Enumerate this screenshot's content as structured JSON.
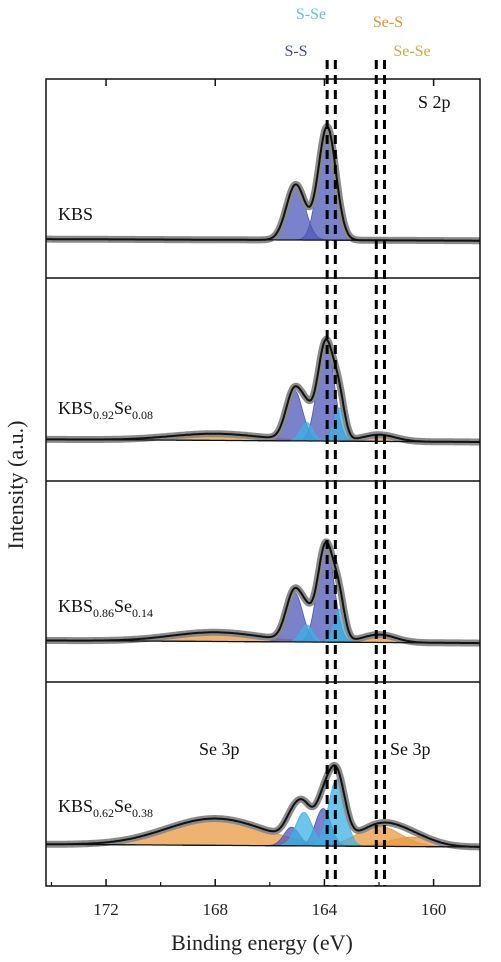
{
  "chart_data": {
    "type": "line",
    "title": "",
    "xlabel": "Binding energy (eV)",
    "ylabel": "Intensity (a.u.)",
    "x_reversed": true,
    "xlim": [
      174.2,
      158.3
    ],
    "xticks": [
      172,
      168,
      164,
      160
    ],
    "xtick_labels": [
      "172",
      "168",
      "164",
      "160"
    ],
    "grid": false,
    "corner_label": "S 2p",
    "reference_lines": [
      {
        "name": "S-Se",
        "energy": 163.6,
        "color": "#5bc3ea"
      },
      {
        "name": "S-S",
        "energy": 163.9,
        "color": "#3f4fb0"
      },
      {
        "name": "Se-S",
        "energy": 162.1,
        "color": "#e8902c"
      },
      {
        "name": "Se-Se",
        "energy": 161.8,
        "color": "#d8a640"
      }
    ],
    "panels": [
      {
        "label": "KBS",
        "sub1": "",
        "mid": "",
        "sub2": "",
        "baseline": 0.03,
        "components": [
          {
            "type": "S-S",
            "color": "#4c58b8",
            "peaks": [
              [
                163.9,
                0.88,
                0.32
              ],
              [
                165.05,
                0.43,
                0.34
              ]
            ]
          }
        ],
        "se3p_labels": []
      },
      {
        "label": "KBS",
        "sub1": "0.92",
        "mid": "Se",
        "sub2": "0.08",
        "baseline": 0.05,
        "components": [
          {
            "type": "S-S",
            "color": "#4c58b8",
            "peaks": [
              [
                163.95,
                0.75,
                0.3
              ],
              [
                165.1,
                0.38,
                0.3
              ]
            ]
          },
          {
            "type": "S-Se",
            "color": "#3cb2e4",
            "peaks": [
              [
                163.45,
                0.25,
                0.2
              ],
              [
                164.65,
                0.14,
                0.22
              ]
            ]
          },
          {
            "type": "Se 3p",
            "color": "#e89a40",
            "peaks": [
              [
                168.0,
                0.05,
                1.6
              ],
              [
                162.0,
                0.05,
                0.6
              ]
            ]
          }
        ],
        "se3p_labels": []
      },
      {
        "label": "KBS",
        "sub1": "0.86",
        "mid": "Se",
        "sub2": "0.14",
        "baseline": 0.05,
        "components": [
          {
            "type": "S-S",
            "color": "#4c58b8",
            "peaks": [
              [
                163.95,
                0.75,
                0.3
              ],
              [
                165.1,
                0.38,
                0.3
              ]
            ]
          },
          {
            "type": "S-Se",
            "color": "#3cb2e4",
            "peaks": [
              [
                163.45,
                0.25,
                0.2
              ],
              [
                164.65,
                0.13,
                0.22
              ]
            ]
          },
          {
            "type": "Se 3p",
            "color": "#e89a40",
            "peaks": [
              [
                168.0,
                0.07,
                1.6
              ],
              [
                162.0,
                0.06,
                0.6
              ]
            ]
          }
        ],
        "se3p_labels": []
      },
      {
        "label": "KBS",
        "sub1": "0.62",
        "mid": "Se",
        "sub2": "0.38",
        "baseline": 0.05,
        "components": [
          {
            "type": "S-S",
            "color": "#4c58b8",
            "peaks": [
              [
                164.05,
                0.28,
                0.28
              ],
              [
                165.2,
                0.14,
                0.28
              ]
            ]
          },
          {
            "type": "S-Se",
            "color": "#3cb2e4",
            "peaks": [
              [
                163.55,
                0.5,
                0.3
              ],
              [
                164.75,
                0.25,
                0.3
              ]
            ]
          },
          {
            "type": "Se 3p",
            "color": "#e89a40",
            "peaks": [
              [
                168.0,
                0.2,
                1.8
              ],
              [
                162.0,
                0.15,
                0.8
              ],
              [
                160.8,
                0.07,
                0.8
              ]
            ]
          }
        ],
        "se3p_labels": [
          "Se 3p",
          "Se 3p"
        ]
      }
    ]
  },
  "ref_labels": [
    "S-Se",
    "Se-S",
    "S-S",
    "Se-Se"
  ]
}
